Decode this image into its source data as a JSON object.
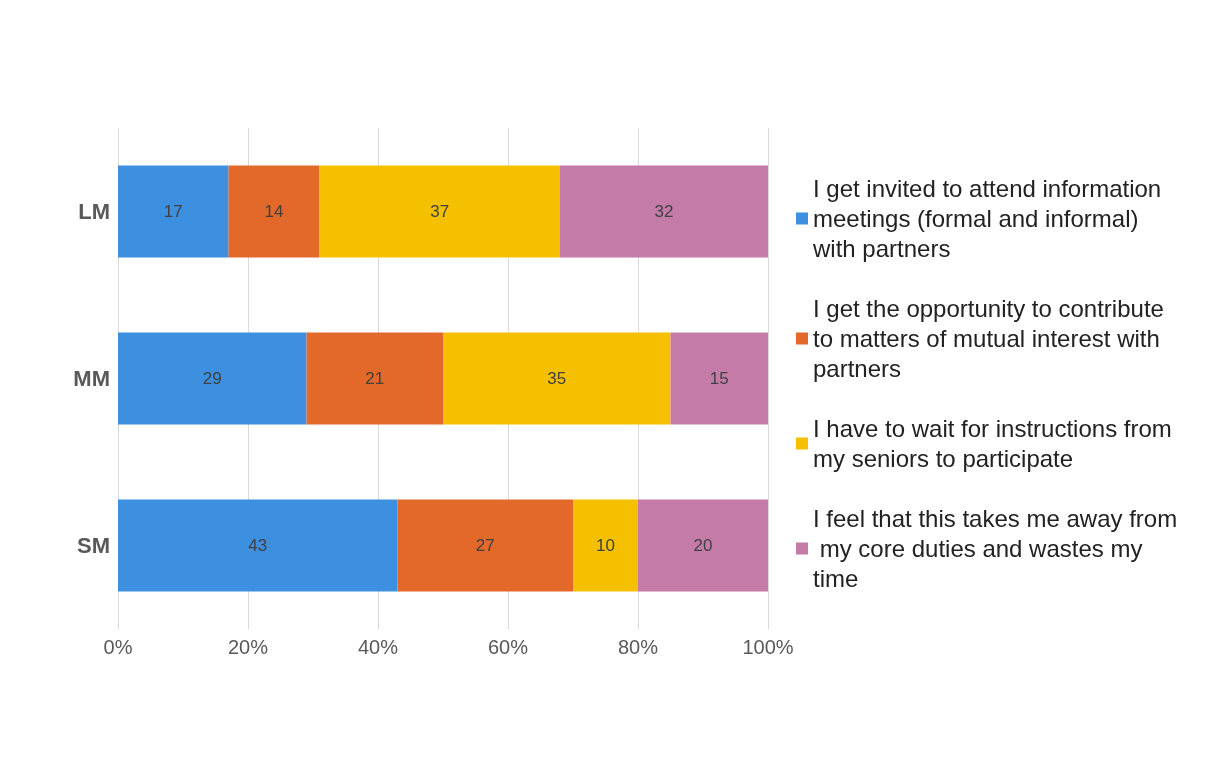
{
  "chart_data": {
    "type": "bar",
    "orientation": "horizontal",
    "stacked": true,
    "categories": [
      "LM",
      "MM",
      "SM"
    ],
    "series": [
      {
        "name": "I get invited to attend information meetings (formal and informal) with partners",
        "color": "#3d8fe0",
        "values": [
          17,
          29,
          43
        ]
      },
      {
        "name": "I get the opportunity to contribute to matters of mutual interest with partners",
        "color": "#e2692a",
        "values": [
          14,
          21,
          27
        ]
      },
      {
        "name": "I have to wait for instructions from my seniors to participate",
        "color": "#f5c000",
        "values": [
          37,
          35,
          10
        ]
      },
      {
        "name": "I feel that this takes me away from my core duties and wastes my time",
        "color": "#c47ba8",
        "values": [
          32,
          15,
          20
        ]
      }
    ],
    "xlim": [
      0,
      100
    ],
    "xticks": [
      {
        "value": 0,
        "label": "0%"
      },
      {
        "value": 20,
        "label": "20%"
      },
      {
        "value": 40,
        "label": "40%"
      },
      {
        "value": 60,
        "label": "60%"
      },
      {
        "value": 80,
        "label": "80%"
      },
      {
        "value": 100,
        "label": "100%"
      }
    ],
    "data_labels": true,
    "grid": "x",
    "legend": "right"
  }
}
